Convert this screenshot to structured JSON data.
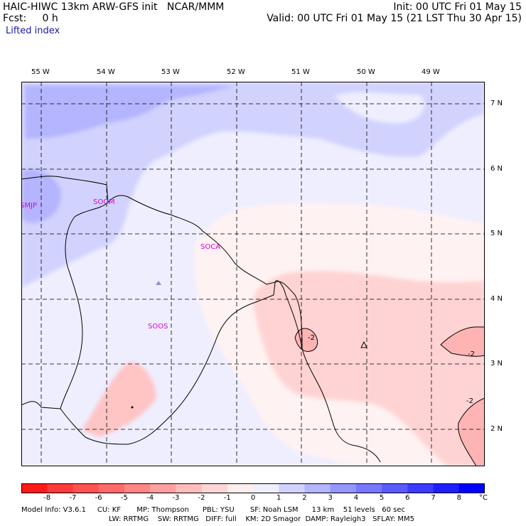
{
  "header": {
    "left_line1": "HAIC-HIWC 13km ARW-GFS init   NCAR/MMM",
    "left_line2": "Fcst:     0 h",
    "right_line1": "Init: 00 UTC Fri 01 May 15",
    "right_line2": "Valid: 00 UTC Fri 01 May 15 (21 LST Thu 30 Apr 15)",
    "field": "Lifted index"
  },
  "longitudes": [
    "55 W",
    "54 W",
    "53 W",
    "52 W",
    "51 W",
    "50 W",
    "49 W"
  ],
  "latitudes": [
    "7 N",
    "6 N",
    "5 N",
    "4 N",
    "3 N",
    "2 N"
  ],
  "stations": [
    "SMJP",
    "SOGM",
    "SOCA",
    "SOOS"
  ],
  "contour_labels": [
    "-2",
    "-2",
    "-2"
  ],
  "colorbar": {
    "labels": [
      "-8",
      "-7",
      "-6",
      "-5",
      "-4",
      "-3",
      "-2",
      "-1",
      "0",
      "1",
      "2",
      "3",
      "4",
      "5",
      "6",
      "7",
      "8"
    ],
    "unit": "°C",
    "colors": [
      "#ff1a1a",
      "#ff3a3a",
      "#ff5252",
      "#ff6a6a",
      "#ff8686",
      "#ffa0a0",
      "#ffbcbc",
      "#ffd6d6",
      "#ffeeee",
      "#eeeeff",
      "#d2d2ff",
      "#b4b4ff",
      "#9696ff",
      "#7878ff",
      "#5a5aff",
      "#3c3cff",
      "#1e1eff",
      "#0000ff"
    ]
  },
  "footer": {
    "line1": "Model Info: V3.6.1     CU: KF       MP: Thompson      PBL: YSU       SF: Noah LSM      13 km    51 levels   60 sec",
    "line2": "LW: RRTMG    SW: RRTMG   DIFF: full    KM: 2D Smagor  DAMP: Rayleigh3   SFLAY: MM5"
  }
}
